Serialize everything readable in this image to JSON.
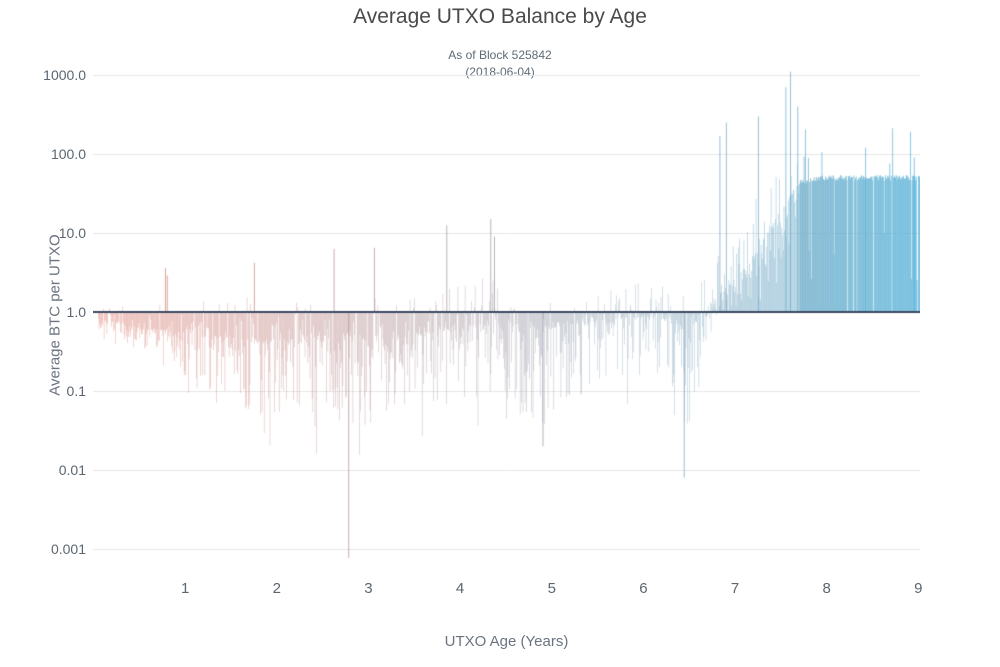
{
  "page": {
    "background": "#ffffff"
  },
  "chart_data": {
    "type": "bar",
    "title": "Average UTXO Balance by Age",
    "subtitle_line1": "As of Block 525842",
    "subtitle_line2": "(2018-06-04)",
    "xlabel": "UTXO Age (Years)",
    "ylabel": "Average BTC per UTXO",
    "y_scale": "log",
    "baseline": 1.0,
    "x_range": [
      0,
      9.05
    ],
    "x_ticks": [
      {
        "label": "1",
        "value": 1
      },
      {
        "label": "2",
        "value": 2
      },
      {
        "label": "3",
        "value": 3
      },
      {
        "label": "4",
        "value": 4
      },
      {
        "label": "5",
        "value": 5
      },
      {
        "label": "6",
        "value": 6
      },
      {
        "label": "7",
        "value": 7
      },
      {
        "label": "8",
        "value": 8
      },
      {
        "label": "9",
        "value": 9
      }
    ],
    "y_ticks": [
      {
        "label": "1000.0",
        "value": 1000
      },
      {
        "label": "100.0",
        "value": 100
      },
      {
        "label": "10.0",
        "value": 10
      },
      {
        "label": "1.0",
        "value": 1
      },
      {
        "label": "0.1",
        "value": 0.1
      },
      {
        "label": "0.01",
        "value": 0.01
      },
      {
        "label": "0.001",
        "value": 0.001
      }
    ],
    "grid": true,
    "legend": false,
    "colors": {
      "bar_young": "#df7a6c",
      "bar_old": "#56b3d9",
      "baseline_line": "#3b4a63",
      "gridline": "#e7e7e7",
      "title_text": "#4a4a4a",
      "tick_text": "#5b6670",
      "axis_title_text": "#6b7480"
    },
    "seed": 1337,
    "bar_count": 1150,
    "profile": [
      {
        "age": 0.05,
        "med": 0.8,
        "dn": 0.45,
        "up": 1.3
      },
      {
        "age": 0.3,
        "med": 0.7,
        "dn": 0.35,
        "up": 1.5
      },
      {
        "age": 0.6,
        "med": 0.6,
        "dn": 0.3,
        "up": 1.4
      },
      {
        "age": 0.8,
        "med": 0.6,
        "dn": 0.3,
        "up": 1.7
      },
      {
        "age": 1.0,
        "med": 0.55,
        "dn": 0.15,
        "up": 1.3
      },
      {
        "age": 1.3,
        "med": 0.5,
        "dn": 0.07,
        "up": 1.4
      },
      {
        "age": 1.7,
        "med": 0.45,
        "dn": 0.05,
        "up": 1.6
      },
      {
        "age": 2.0,
        "med": 0.45,
        "dn": 0.04,
        "up": 1.3
      },
      {
        "age": 2.4,
        "med": 0.5,
        "dn": 0.04,
        "up": 1.5
      },
      {
        "age": 2.8,
        "med": 0.5,
        "dn": 0.03,
        "up": 1.6
      },
      {
        "age": 3.2,
        "med": 0.5,
        "dn": 0.05,
        "up": 1.5
      },
      {
        "age": 3.6,
        "med": 0.55,
        "dn": 0.06,
        "up": 1.6
      },
      {
        "age": 4.0,
        "med": 0.6,
        "dn": 0.07,
        "up": 2.2
      },
      {
        "age": 4.35,
        "med": 0.8,
        "dn": 0.1,
        "up": 3.0
      },
      {
        "age": 4.7,
        "med": 0.6,
        "dn": 0.05,
        "up": 1.5
      },
      {
        "age": 4.9,
        "med": 0.6,
        "dn": 0.04,
        "up": 1.5
      },
      {
        "age": 5.2,
        "med": 0.7,
        "dn": 0.08,
        "up": 1.6
      },
      {
        "age": 5.6,
        "med": 0.78,
        "dn": 0.1,
        "up": 1.9
      },
      {
        "age": 6.0,
        "med": 0.9,
        "dn": 0.15,
        "up": 2.8
      },
      {
        "age": 6.3,
        "med": 0.8,
        "dn": 0.1,
        "up": 2.0
      },
      {
        "age": 6.5,
        "med": 0.6,
        "dn": 0.05,
        "up": 1.5
      },
      {
        "age": 6.7,
        "med": 1.3,
        "dn": 0.5,
        "up": 4.0
      },
      {
        "age": 6.9,
        "med": 2.0,
        "dn": 0.8,
        "up": 12.0
      },
      {
        "age": 7.1,
        "med": 3.5,
        "dn": 1.0,
        "up": 30.0
      },
      {
        "age": 7.3,
        "med": 8.0,
        "dn": 1.5,
        "up": 80.0
      },
      {
        "age": 7.5,
        "med": 20.0,
        "dn": 3.0,
        "up": 200.0
      },
      {
        "age": 7.7,
        "med": 45.0,
        "dn": 20.0,
        "up": 90.0
      },
      {
        "age": 8.0,
        "med": 50.0,
        "dn": 45.0,
        "up": 60.0
      },
      {
        "age": 9.02,
        "med": 50.0,
        "dn": 45.0,
        "up": 60.0
      }
    ],
    "features": [
      {
        "age": 0.78,
        "value": 3.6
      },
      {
        "age": 0.8,
        "value": 2.9
      },
      {
        "age": 1.75,
        "value": 4.2
      },
      {
        "age": 2.62,
        "value": 6.3
      },
      {
        "age": 2.78,
        "value": 0.0007
      },
      {
        "age": 3.06,
        "value": 6.5
      },
      {
        "age": 3.85,
        "value": 12.5
      },
      {
        "age": 4.33,
        "value": 15.0
      },
      {
        "age": 4.37,
        "value": 9.0
      },
      {
        "age": 4.9,
        "value": 0.02
      },
      {
        "age": 6.44,
        "value": 0.008
      },
      {
        "age": 6.83,
        "value": 170.0
      },
      {
        "age": 6.9,
        "value": 250.0
      },
      {
        "age": 7.25,
        "value": 300.0
      },
      {
        "age": 7.55,
        "value": 700.0
      },
      {
        "age": 7.6,
        "value": 1100.0
      },
      {
        "age": 7.68,
        "value": 400.0
      },
      {
        "age": 8.42,
        "value": 120.0
      },
      {
        "age": 8.95,
        "value": 90.0
      }
    ]
  }
}
